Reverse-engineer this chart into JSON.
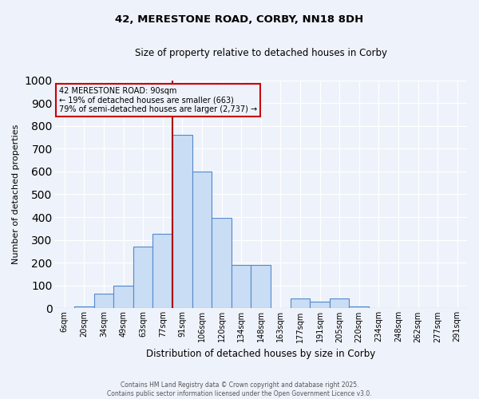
{
  "title_line1": "42, MERESTONE ROAD, CORBY, NN18 8DH",
  "title_line2": "Size of property relative to detached houses in Corby",
  "xlabel": "Distribution of detached houses by size in Corby",
  "ylabel": "Number of detached properties",
  "categories": [
    "6sqm",
    "20sqm",
    "34sqm",
    "49sqm",
    "63sqm",
    "77sqm",
    "91sqm",
    "106sqm",
    "120sqm",
    "134sqm",
    "148sqm",
    "163sqm",
    "177sqm",
    "191sqm",
    "205sqm",
    "220sqm",
    "234sqm",
    "248sqm",
    "262sqm",
    "277sqm",
    "291sqm"
  ],
  "values": [
    0,
    10,
    63,
    100,
    270,
    325,
    760,
    600,
    395,
    190,
    190,
    0,
    43,
    28,
    43,
    10,
    0,
    0,
    0,
    0,
    0
  ],
  "bar_color": "#c9ddf5",
  "bar_edge_color": "#5588cc",
  "vline_x_index": 6,
  "vline_color": "#aa0000",
  "annotation_text": "42 MERESTONE ROAD: 90sqm\n← 19% of detached houses are smaller (663)\n79% of semi-detached houses are larger (2,737) →",
  "annotation_box_color": "#cc0000",
  "ylim": [
    0,
    1000
  ],
  "yticks": [
    0,
    100,
    200,
    300,
    400,
    500,
    600,
    700,
    800,
    900,
    1000
  ],
  "footer": "Contains HM Land Registry data © Crown copyright and database right 2025.\nContains public sector information licensed under the Open Government Licence v3.0.",
  "bg_color": "#eef2fa"
}
